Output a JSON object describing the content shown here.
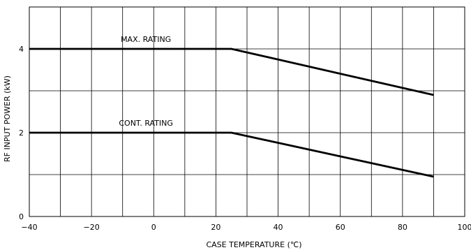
{
  "chart_data": {
    "type": "line",
    "title": "",
    "xlabel": "CASE TEMPERATURE (℃)",
    "ylabel": "RF INPUT POWER (kW)",
    "xlim": [
      -40,
      100
    ],
    "ylim": [
      0,
      5
    ],
    "x_ticks": [
      -40,
      -20,
      0,
      20,
      40,
      60,
      80,
      100
    ],
    "x_tick_labels": [
      "−40",
      "−20",
      "0",
      "20",
      "40",
      "60",
      "80",
      "100"
    ],
    "y_ticks": [
      0,
      2,
      4
    ],
    "y_tick_labels": [
      "0",
      "2",
      "4"
    ],
    "grid": true,
    "legend": "none",
    "series": [
      {
        "name": "MAX. RATING",
        "x": [
          -40,
          25,
          90
        ],
        "y": [
          4.0,
          4.0,
          2.9
        ]
      },
      {
        "name": "CONT. RATING",
        "x": [
          -40,
          25,
          90
        ],
        "y": [
          2.0,
          2.0,
          0.95
        ]
      }
    ],
    "colors": {
      "line": "#000000",
      "grid": "#000000",
      "background": "#ffffff"
    }
  }
}
